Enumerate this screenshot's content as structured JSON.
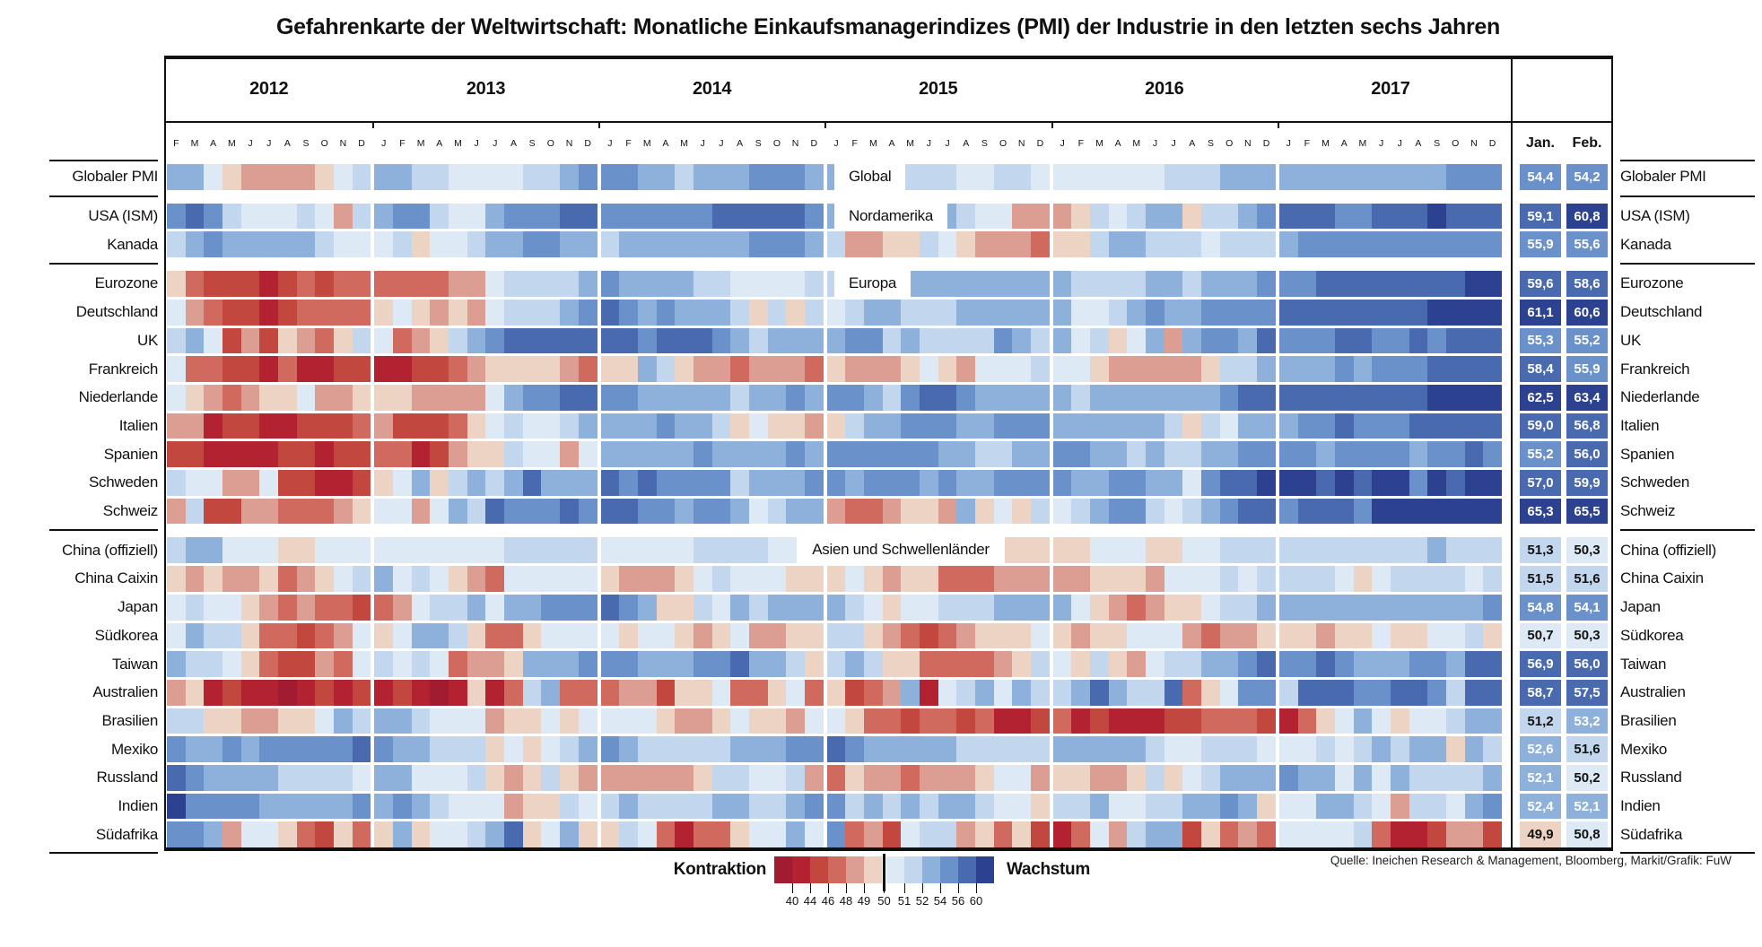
{
  "title": "Gefahrenkarte der Weltwirtschaft: Monatliche Einkaufsmanagerindizes (PMI) der Industrie in den letzten sechs Jahren",
  "source": "Quelle: Ineichen Research & Management, Bloomberg, Markit/Grafik: FuW",
  "header": {
    "years": [
      "2012",
      "2013",
      "2014",
      "2015",
      "2016",
      "2017"
    ],
    "months_first_year": [
      "F",
      "M",
      "A",
      "M",
      "J",
      "J",
      "A",
      "S",
      "O",
      "N",
      "D"
    ],
    "months_other_years": [
      "J",
      "F",
      "M",
      "A",
      "M",
      "J",
      "J",
      "A",
      "S",
      "O",
      "N",
      "D"
    ],
    "jan": "Jan.",
    "feb": "Feb."
  },
  "legend": {
    "left_label": "Kontraktion",
    "right_label": "Wachstum",
    "ticks": [
      "40",
      "44",
      "46",
      "48",
      "49",
      "50",
      "51",
      "52",
      "54",
      "56",
      "60"
    ]
  },
  "palette": {
    "0": "#a11c30",
    "1": "#b22230",
    "2": "#c2473f",
    "3": "#d06a5f",
    "4": "#dc9d92",
    "5": "#edd3c3",
    "6": "#dde9f5",
    "7": "#c2d7ed",
    "8": "#8eb1dc",
    "9": "#6b91ca",
    "A": "#4a6ab0",
    "B": "#2c4290"
  },
  "chart_data": {
    "type": "heatmap",
    "x_unit": "month",
    "x_range": "Februar 2012 – Dezember 2017 plus Jan./Feb. (aktuell)",
    "class_values": {
      "0": "<40",
      "1": "40-44",
      "2": "44-46",
      "3": "46-48",
      "4": "48-49",
      "5": "49-50",
      "6": "50-51",
      "7": "51-52",
      "8": "52-54",
      "9": "54-56",
      "A": "56-60",
      "B": ">60"
    },
    "groups": [
      {
        "section": "Global",
        "rows": [
          {
            "label": "Globaler PMI",
            "jan": "54,4",
            "feb": "54,2",
            "jan_class": "9",
            "feb_class": "9",
            "cells": [
              "88654444567",
              "887766667789",
              "998878889998",
              "888777766776",
              "666666777888",
              "888888888999"
            ]
          }
        ]
      },
      {
        "section": "Nordamerika",
        "rows": [
          {
            "label": "USA (ISM)",
            "jan": "59,1",
            "feb": "60,8",
            "jan_class": "A",
            "feb_class": "B",
            "cells": [
              "9A976667647",
              "8997668999AA",
              "999999AAAAA9",
              "887788876644",
              "457678857789",
              "AAA99AAABAAA"
            ]
          },
          {
            "label": "Kanada",
            "jan": "55,9",
            "feb": "55,6",
            "jan_class": "9",
            "feb_class": "9",
            "cells": [
              "78988888766",
              "675667889988",
              "788888889998",
              "744557654443",
              "557887776777",
              "899999999999"
            ]
          }
        ]
      },
      {
        "section": "Europa",
        "rows": [
          {
            "label": "Eurozone",
            "jan": "59,6",
            "feb": "58,6",
            "jan_class": "A",
            "feb_class": "A",
            "cells": [
              "53222123233",
              "333344677778",
              "988887766667",
              "778888888888",
              "877778878889",
              "99AAAAAAAABB"
            ]
          },
          {
            "label": "Deutschland",
            "jan": "61,1",
            "feb": "60,6",
            "jan_class": "B",
            "feb_class": "B",
            "cells": [
              "64322123333",
              "565454677789",
              "A98988875757",
              "678877788888",
              "866789889999",
              "AAAAAAAABBBB"
            ]
          },
          {
            "label": "UK",
            "jan": "55,3",
            "feb": "55,2",
            "jan_class": "9",
            "feb_class": "9",
            "cells": [
              "78624254357",
              "6345789AAAAA",
              "AA9AAA987888",
              "899787777987",
              "86756848998A",
              "999AA99A9AAA"
            ]
          },
          {
            "label": "Frankreich",
            "jan": "58,4",
            "feb": "55,9",
            "jan_class": "A",
            "feb_class": "9",
            "cells": [
              "63322131122",
              "112234555543",
              "558754434443",
              "544456546667",
              "665444445778",
              "88898999AAAA"
            ]
          },
          {
            "label": "Niederlande",
            "jan": "62,5",
            "feb": "63,4",
            "jan_class": "B",
            "feb_class": "B",
            "cells": [
              "65434556445",
              "5544446899AA",
              "998888878898",
              "99879AA98888",
              "8788888889AA",
              "AAAAAAAABBBB"
            ]
          },
          {
            "label": "Italien",
            "jan": "59,0",
            "feb": "56,8",
            "jan_class": "A",
            "feb_class": "A",
            "cells": [
              "44122112223",
              "422235676678",
              "888988756554",
              "578899988999",
              "888888757688",
              "899A999AAAAA"
            ]
          },
          {
            "label": "Spanien",
            "jan": "55,2",
            "feb": "56,0",
            "jan_class": "9",
            "feb_class": "A",
            "cells": [
              "22111122122",
              "331245576646",
              "888889888898",
              "999999887788",
              "998878778899",
              "9989999899A9"
            ]
          },
          {
            "label": "Schweden",
            "jan": "57,0",
            "feb": "59,9",
            "jan_class": "A",
            "feb_class": "A",
            "cells": [
              "76644622112",
              "56857878A888",
              "A9A999978889",
              "989998988999",
              "988998869AAB",
              "BBABABB9BABB"
            ]
          },
          {
            "label": "Schweiz",
            "jan": "65,3",
            "feb": "65,5",
            "jan_class": "B",
            "feb_class": "B",
            "cells": [
              "47224433345",
              "664687A999A9",
              "AA9989986788",
              "433455485657",
              "6789976789AA",
              "9AAA9BBBBBBB"
            ]
          }
        ]
      },
      {
        "section": "Asien und Schwellenländer",
        "rows": [
          {
            "label": "China (offiziell)",
            "jan": "51,3",
            "feb": "50,3",
            "jan_class": "7",
            "feb_class": "6",
            "cells": [
              "78866655666",
              "666666677777",
              "666667777666",
              "556666555555",
              "556665566777",
              "777777778777"
            ]
          },
          {
            "label": "China Caixin",
            "jan": "51,5",
            "feb": "51,6",
            "jan_class": "7",
            "feb_class": "7",
            "cells": [
              "54544534567",
              "867654366666",
              "544456766655",
              "565455333444",
              "445554666767",
              "777656777767"
            ]
          },
          {
            "label": "Japan",
            "jan": "54,8",
            "feb": "54,1",
            "jan_class": "9",
            "feb_class": "9",
            "cells": [
              "67665434332",
              "346778688999",
              "A98557687888",
              "876566777888",
              "865434556778",
              "888888888889"
            ]
          },
          {
            "label": "Südkorea",
            "jan": "50,7",
            "feb": "50,3",
            "jan_class": "6",
            "feb_class": "6",
            "cells": [
              "68775332346",
              "568875335666",
              "656654564455",
              "775432345556",
              "545566643445",
              "554556556675"
            ]
          },
          {
            "label": "Taiwan",
            "jan": "56,9",
            "feb": "56,0",
            "jan_class": "A",
            "feb_class": "A",
            "cells": [
              "87765322436",
              "767634458889",
              "9988899A8875",
              "787553333457",
              "65754677889A",
              "99A9888998AA"
            ]
          },
          {
            "label": "Australien",
            "jan": "58,7",
            "feb": "57,5",
            "jan_class": "A",
            "feb_class": "A",
            "cells": [
              "45121101212",
              "121015137833",
              "344255633563",
              "523481678687",
              "78A877A35699",
              "7AAA99AA97AA"
            ]
          },
          {
            "label": "Brasilien",
            "jan": "51,2",
            "feb": "53,2",
            "jan_class": "7",
            "feb_class": "8",
            "cells": [
              "77554455687",
              "887666455656",
              "666544565546",
              "653323323112",
              "312111223332",
              "135686566788"
            ]
          },
          {
            "label": "Mexiko",
            "jan": "52,6",
            "feb": "51,6",
            "jan_class": "8",
            "feb_class": "7",
            "cells": [
              "9889899999A",
              "988777565678",
              "987777788899",
              "A98888877777",
              "888887667776",
              "667678788587"
            ]
          },
          {
            "label": "Russland",
            "jan": "52,1",
            "feb": "50,2",
            "jan_class": "8",
            "feb_class": "6",
            "cells": [
              "A9888877776",
              "886667545754",
              "444445776674",
              "354434445664",
              "554457567888",
              "988686877778"
            ]
          },
          {
            "label": "Indien",
            "jan": "52,4",
            "feb": "52,1",
            "jan_class": "8",
            "feb_class": "8",
            "cells": [
              "B9999888889",
              "898766645576",
              "787777887789",
              "978787887665",
              "778667788985",
              "668876477689"
            ]
          },
          {
            "label": "Südafrika",
            "jan": "49,9",
            "feb": "50,8",
            "jan_class": "5",
            "feb_class": "6",
            "cells": [
              "99846653253",
              "5856678A5685",
              "576313356686",
              "934267745352",
              "136478825343",
              "666673112442"
            ]
          }
        ]
      }
    ]
  }
}
